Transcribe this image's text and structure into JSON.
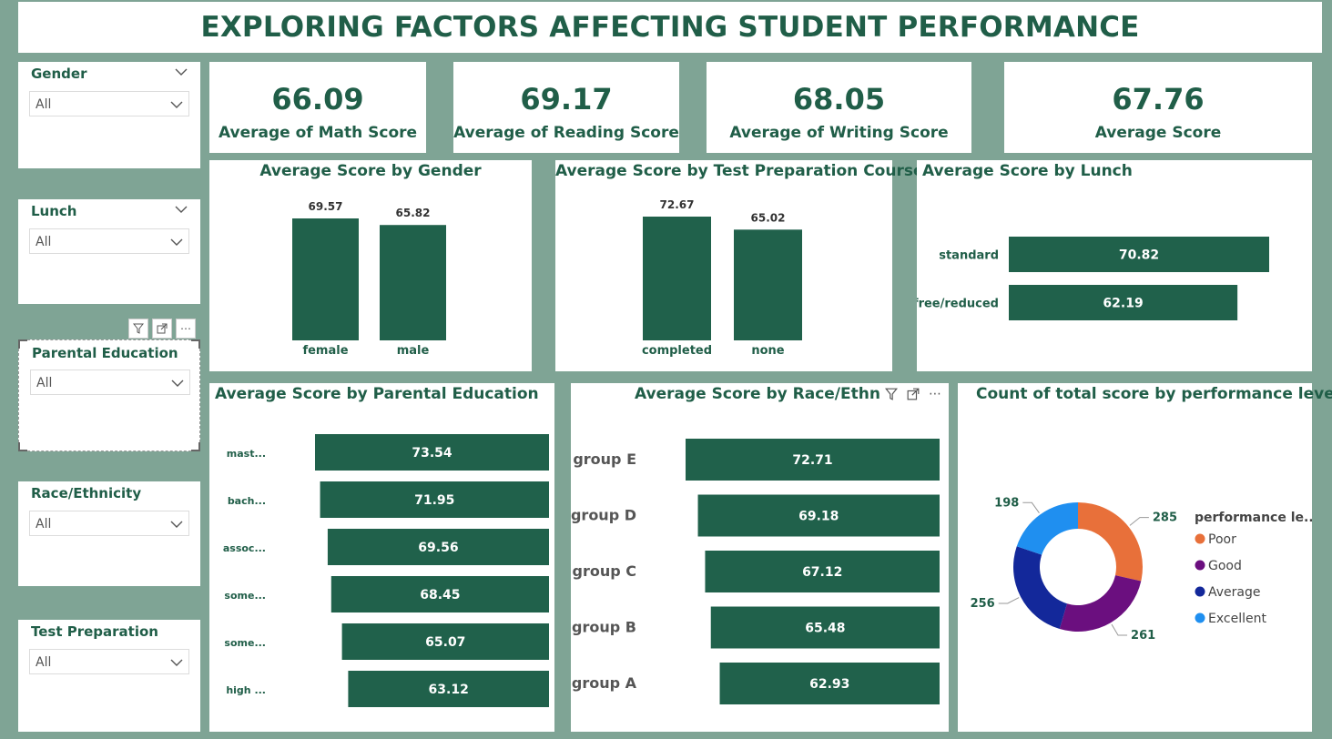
{
  "title": "EXPLORING FACTORS AFFECTING STUDENT PERFORMANCE",
  "colors": {
    "bar": "#20614b",
    "poor": "#e8703a",
    "good": "#6b0f7f",
    "average": "#13289a",
    "excellent": "#1f8ff0"
  },
  "slicers": [
    {
      "title": "Gender",
      "value": "All"
    },
    {
      "title": "Lunch",
      "value": "All"
    },
    {
      "title": "Parental Education",
      "value": "All"
    },
    {
      "title": "Race/Ethnicity",
      "value": "All"
    },
    {
      "title": "Test Preparation",
      "value": "All"
    }
  ],
  "kpis": [
    {
      "value": "66.09",
      "label": "Average of Math Score"
    },
    {
      "value": "69.17",
      "label": "Average of Reading Score"
    },
    {
      "value": "68.05",
      "label": "Average of Writing Score"
    },
    {
      "value": "67.76",
      "label": "Average Score"
    }
  ],
  "chart_data": [
    {
      "type": "bar",
      "title": "Average Score by Gender",
      "categories": [
        "female",
        "male"
      ],
      "values": [
        69.57,
        65.82
      ],
      "labels": [
        "69.57",
        "65.82"
      ]
    },
    {
      "type": "bar",
      "title": "Average Score by Test Preparation Course",
      "categories": [
        "completed",
        "none"
      ],
      "values": [
        72.67,
        65.02
      ],
      "labels": [
        "72.67",
        "65.02"
      ]
    },
    {
      "type": "bar",
      "orientation": "horizontal",
      "title": "Average Score by Lunch",
      "categories": [
        "standard",
        "free/reduced"
      ],
      "values": [
        70.82,
        62.19
      ],
      "labels": [
        "70.82",
        "62.19"
      ]
    },
    {
      "type": "bar",
      "orientation": "horizontal",
      "title": "Average Score by Parental Education",
      "categories": [
        "mast...",
        "bach...",
        "assoc...",
        "some...",
        "some...",
        "high ..."
      ],
      "values": [
        73.54,
        71.95,
        69.56,
        68.45,
        65.07,
        63.12
      ],
      "labels": [
        "73.54",
        "71.95",
        "69.56",
        "68.45",
        "65.07",
        "63.12"
      ]
    },
    {
      "type": "bar",
      "orientation": "horizontal",
      "title": "Average Score by Race/Ethnicit",
      "categories": [
        "group E",
        "group D",
        "group C",
        "group B",
        "group A"
      ],
      "values": [
        72.71,
        69.18,
        67.12,
        65.48,
        62.93
      ],
      "labels": [
        "72.71",
        "69.18",
        "67.12",
        "65.48",
        "62.93"
      ]
    },
    {
      "type": "pie",
      "donut": true,
      "title": "Count of total score by performance level",
      "legend_title": "performance le...",
      "legend_position": "right",
      "slices": [
        {
          "name": "Poor",
          "value": 285,
          "label": "285"
        },
        {
          "name": "Good",
          "value": 261,
          "label": "261"
        },
        {
          "name": "Average",
          "value": 256,
          "label": "256"
        },
        {
          "name": "Excellent",
          "value": 198,
          "label": "198"
        }
      ]
    }
  ]
}
